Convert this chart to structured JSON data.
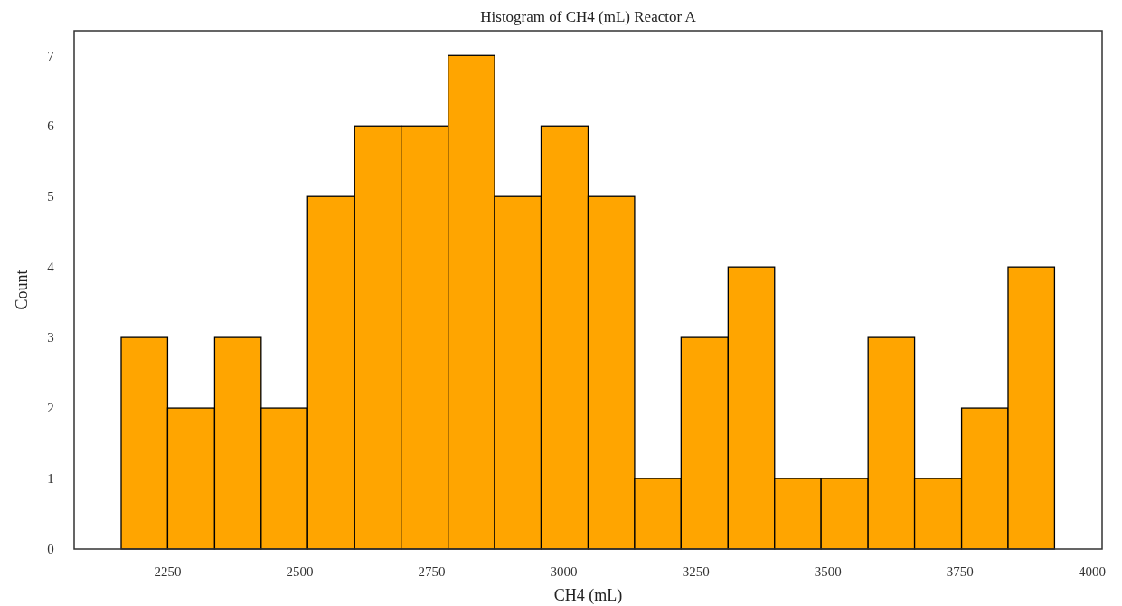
{
  "chart_data": {
    "type": "histogram",
    "title": "Histogram of CH4 (mL) Reactor A",
    "xlabel": "CH4 (mL)",
    "ylabel": "Count",
    "bins": [
      2162,
      2250,
      2339,
      2427,
      2515,
      2604,
      2692,
      2781,
      2869,
      2957,
      3046,
      3134,
      3222,
      3311,
      3399,
      3487,
      3576,
      3664,
      3753,
      3841,
      3929
    ],
    "values": [
      3,
      2,
      3,
      2,
      5,
      6,
      6,
      7,
      5,
      6,
      5,
      1,
      3,
      4,
      1,
      1,
      3,
      1,
      2,
      4
    ],
    "color": "#ffa500",
    "xlim": [
      2073,
      4019
    ],
    "xticks": [
      2250,
      2500,
      2750,
      3000,
      3250,
      3500,
      3750,
      4000
    ],
    "ylim": [
      0,
      7.35
    ],
    "yticks": [
      0,
      1,
      2,
      3,
      4,
      5,
      6,
      7
    ],
    "grid": false
  }
}
